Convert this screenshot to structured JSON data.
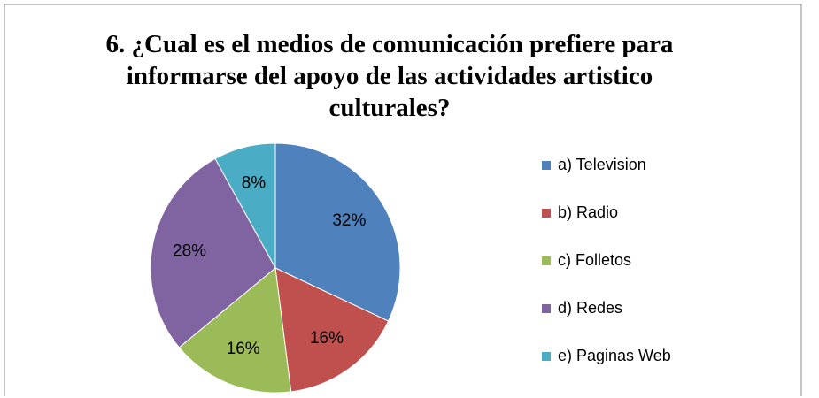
{
  "chart_data": {
    "type": "pie",
    "title": "6. ¿Cual es el medios de comunicación prefiere para\ninformarse  del apoyo de las actividades artistico\nculturales?",
    "categories": [
      "a) Television",
      "b) Radio",
      "c) Folletos",
      "d) Redes",
      "e) Paginas Web"
    ],
    "values": [
      32,
      16,
      16,
      28,
      8
    ],
    "value_labels": [
      "32%",
      "16%",
      "16%",
      "28%",
      "8%"
    ],
    "colors": [
      "#4f81bd",
      "#c0504d",
      "#9bbb59",
      "#8064a2",
      "#4bacc6"
    ],
    "legend": "right"
  }
}
